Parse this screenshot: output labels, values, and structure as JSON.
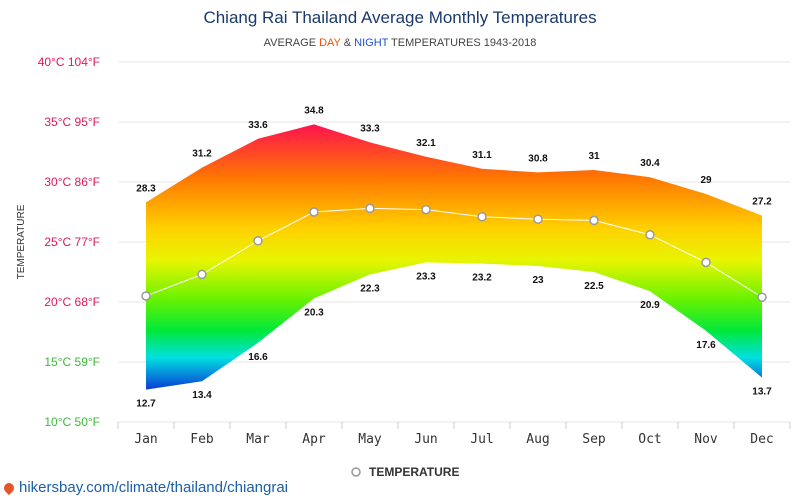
{
  "chart_data": {
    "type": "area",
    "title": "Chiang Rai Thailand Average Monthly Temperatures",
    "subtitle": {
      "prefix": "AVERAGE ",
      "day": "DAY",
      "amp": " & ",
      "night": "NIGHT",
      "suffix": " TEMPERATURES 1943-2018"
    },
    "ylabel": "TEMPERATURE",
    "categories": [
      "Jan",
      "Feb",
      "Mar",
      "Apr",
      "May",
      "Jun",
      "Jul",
      "Aug",
      "Sep",
      "Oct",
      "Nov",
      "Dec"
    ],
    "day": [
      28.3,
      31.2,
      33.6,
      34.8,
      33.3,
      32.1,
      31.1,
      30.8,
      31,
      30.4,
      29,
      27.2
    ],
    "night": [
      12.7,
      13.4,
      16.6,
      20.3,
      22.3,
      23.3,
      23.2,
      23,
      22.5,
      20.9,
      17.6,
      13.7
    ],
    "average": [
      20.5,
      22.3,
      25.1,
      27.5,
      27.8,
      27.7,
      27.1,
      26.9,
      26.8,
      25.6,
      23.3,
      20.4
    ],
    "legend": [
      "TEMPERATURE"
    ],
    "ylim": [
      10,
      40
    ],
    "yticks": [
      {
        "value": 40,
        "label": "40°C 104°F",
        "color": "#e0185a"
      },
      {
        "value": 35,
        "label": "35°C 95°F",
        "color": "#e0185a"
      },
      {
        "value": 30,
        "label": "30°C 86°F",
        "color": "#e0185a"
      },
      {
        "value": 25,
        "label": "25°C 77°F",
        "color": "#e0185a"
      },
      {
        "value": 20,
        "label": "20°C 68°F",
        "color": "#e0185a"
      },
      {
        "value": 15,
        "label": "15°C 59°F",
        "color": "#3cb93c"
      },
      {
        "value": 10,
        "label": "10°C 50°F",
        "color": "#3cb93c"
      }
    ],
    "grid": true,
    "legend_position": "bottom"
  },
  "colors": {
    "title": "#1a3a6b",
    "day": "#e8540a",
    "night": "#1f4fd6",
    "grid": "#e6e6e6"
  },
  "footer": {
    "text": "hikersbay.com/climate/thailand/chiangrai",
    "icon": "map-pin-icon"
  }
}
